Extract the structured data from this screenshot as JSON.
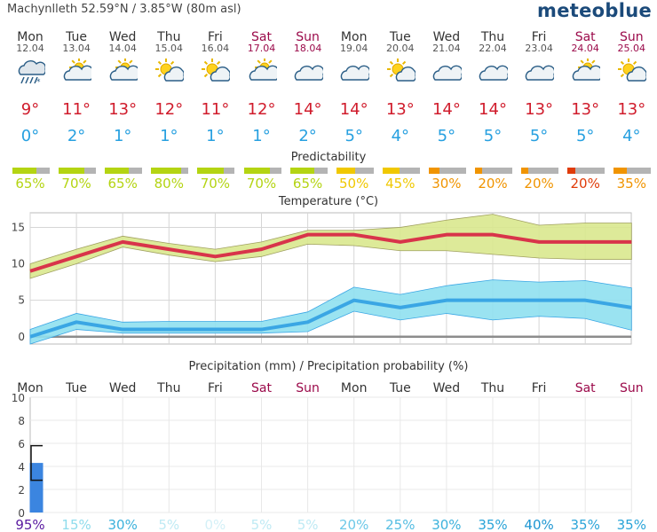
{
  "header": {
    "location": "Machynlleth  52.59°N / 3.85°W (80m asl)",
    "brand": "meteoblue"
  },
  "days": [
    {
      "name": "Mon",
      "date": "12.04",
      "weekend": false,
      "icon": "rain-cloud-icon",
      "tmax": "9°",
      "tmin": "0°",
      "predictability": 65,
      "pred_label": "65%",
      "pred_color": "#b4d412",
      "precip_mm": 4.3,
      "precip_prob": "95%",
      "prob_color": "#5a1aa0"
    },
    {
      "name": "Tue",
      "date": "13.04",
      "weekend": false,
      "icon": "sun-cloud-icon",
      "tmax": "11°",
      "tmin": "2°",
      "predictability": 70,
      "pred_label": "70%",
      "pred_color": "#b4d412",
      "precip_mm": 0,
      "precip_prob": "15%",
      "prob_color": "#8fdcec"
    },
    {
      "name": "Wed",
      "date": "14.04",
      "weekend": false,
      "icon": "sun-cloud-icon",
      "tmax": "13°",
      "tmin": "1°",
      "predictability": 65,
      "pred_label": "65%",
      "pred_color": "#b4d412",
      "precip_mm": 0,
      "precip_prob": "30%",
      "prob_color": "#3cb2dc"
    },
    {
      "name": "Thu",
      "date": "15.04",
      "weekend": false,
      "icon": "sun-small-cloud-icon",
      "tmax": "12°",
      "tmin": "1°",
      "predictability": 80,
      "pred_label": "80%",
      "pred_color": "#b4d412",
      "precip_mm": 0,
      "precip_prob": "5%",
      "prob_color": "#bfeaf4"
    },
    {
      "name": "Fri",
      "date": "16.04",
      "weekend": false,
      "icon": "sun-small-cloud-icon",
      "tmax": "11°",
      "tmin": "1°",
      "predictability": 70,
      "pred_label": "70%",
      "pred_color": "#b4d412",
      "precip_mm": 0,
      "precip_prob": "0%",
      "prob_color": "#d4f0f7"
    },
    {
      "name": "Sat",
      "date": "17.04",
      "weekend": true,
      "icon": "sun-cloud-icon",
      "tmax": "12°",
      "tmin": "1°",
      "predictability": 70,
      "pred_label": "70%",
      "pred_color": "#b4d412",
      "precip_mm": 0,
      "precip_prob": "5%",
      "prob_color": "#bfeaf4"
    },
    {
      "name": "Sun",
      "date": "18.04",
      "weekend": true,
      "icon": "cloud-icon",
      "tmax": "14°",
      "tmin": "2°",
      "predictability": 65,
      "pred_label": "65%",
      "pred_color": "#b4d412",
      "precip_mm": 0,
      "precip_prob": "5%",
      "prob_color": "#bfeaf4"
    },
    {
      "name": "Mon",
      "date": "19.04",
      "weekend": false,
      "icon": "cloud-icon",
      "tmax": "14°",
      "tmin": "5°",
      "predictability": 50,
      "pred_label": "50%",
      "pred_color": "#f0c800",
      "precip_mm": 0,
      "precip_prob": "20%",
      "prob_color": "#6cc8e8"
    },
    {
      "name": "Tue",
      "date": "20.04",
      "weekend": false,
      "icon": "sun-small-cloud-icon",
      "tmax": "13°",
      "tmin": "4°",
      "predictability": 45,
      "pred_label": "45%",
      "pred_color": "#f0c800",
      "precip_mm": 0,
      "precip_prob": "25%",
      "prob_color": "#55bde2"
    },
    {
      "name": "Wed",
      "date": "21.04",
      "weekend": false,
      "icon": "cloud-icon",
      "tmax": "14°",
      "tmin": "5°",
      "predictability": 30,
      "pred_label": "30%",
      "pred_color": "#f09400",
      "precip_mm": 0,
      "precip_prob": "30%",
      "prob_color": "#3cb2dc"
    },
    {
      "name": "Thu",
      "date": "22.04",
      "weekend": false,
      "icon": "cloud-icon",
      "tmax": "14°",
      "tmin": "5°",
      "predictability": 20,
      "pred_label": "20%",
      "pred_color": "#f09400",
      "precip_mm": 0,
      "precip_prob": "35%",
      "prob_color": "#2aa4d8"
    },
    {
      "name": "Fri",
      "date": "23.04",
      "weekend": false,
      "icon": "cloud-icon",
      "tmax": "13°",
      "tmin": "5°",
      "predictability": 20,
      "pred_label": "20%",
      "pred_color": "#f09400",
      "precip_mm": 0,
      "precip_prob": "40%",
      "prob_color": "#1e96d2"
    },
    {
      "name": "Sat",
      "date": "24.04",
      "weekend": true,
      "icon": "sun-cloud-icon",
      "tmax": "13°",
      "tmin": "5°",
      "predictability": 20,
      "pred_label": "20%",
      "pred_color": "#e03c0a",
      "precip_mm": 0,
      "precip_prob": "35%",
      "prob_color": "#2aa4d8"
    },
    {
      "name": "Sun",
      "date": "25.04",
      "weekend": true,
      "icon": "sun-small-cloud-icon",
      "tmax": "13°",
      "tmin": "4°",
      "predictability": 35,
      "pred_label": "35%",
      "pred_color": "#f09400",
      "precip_mm": 0,
      "precip_prob": "35%",
      "prob_color": "#2aa4d8"
    }
  ],
  "sections": {
    "predictability_title": "Predictability",
    "temperature_title": "Temperature (°C)",
    "precip_title": "Precipitation (mm) / Precipitation probability (%)"
  },
  "colors": {
    "max_line": "#d8344a",
    "max_band": "#d9e88e",
    "min_line": "#3aa6e4",
    "min_band": "#8fe0f0",
    "zero_line": "#8c8c8c",
    "precip_bar": "#3b85e0",
    "weekend_text": "#9b0a4a"
  },
  "chart_data": [
    {
      "type": "line",
      "title": "Temperature (°C)",
      "x": [
        "12.04",
        "13.04",
        "14.04",
        "15.04",
        "16.04",
        "17.04",
        "18.04",
        "19.04",
        "20.04",
        "21.04",
        "22.04",
        "23.04",
        "24.04",
        "25.04"
      ],
      "ylim": [
        -1,
        17
      ],
      "yticks": [
        0,
        5,
        10,
        15
      ],
      "grid": true,
      "series": [
        {
          "values": [
            9,
            11,
            13,
            12,
            11,
            12,
            14,
            14,
            13,
            14,
            14,
            13,
            13,
            13
          ],
          "band_low": [
            8,
            10,
            12.3,
            11.2,
            10.3,
            11,
            12.7,
            12.5,
            11.8,
            11.8,
            11.3,
            10.8,
            10.6,
            10.6
          ],
          "band_high": [
            10,
            12,
            13.8,
            12.8,
            12,
            13,
            14.6,
            14.6,
            15,
            16,
            16.8,
            15.3,
            15.6,
            15.6
          ]
        },
        {
          "values": [
            0,
            2,
            1,
            1,
            1,
            1,
            2,
            5,
            4,
            5,
            5,
            5,
            5,
            4
          ],
          "band_low": [
            -1,
            1,
            0.5,
            0.5,
            0.5,
            0.5,
            0.7,
            3.5,
            2.3,
            3.2,
            2.3,
            2.8,
            2.5,
            0.9
          ],
          "band_high": [
            1,
            3.2,
            2,
            2.1,
            2.1,
            2.1,
            3.4,
            6.8,
            5.8,
            7,
            7.8,
            7.5,
            7.7,
            6.7
          ]
        }
      ]
    },
    {
      "type": "bar",
      "title": "Precipitation (mm) / Precipitation probability (%)",
      "categories": [
        "Mon",
        "Tue",
        "Wed",
        "Thu",
        "Fri",
        "Sat",
        "Sun",
        "Mon",
        "Tue",
        "Wed",
        "Thu",
        "Fri",
        "Sat",
        "Sun"
      ],
      "values": [
        4.3,
        0,
        0,
        0,
        0,
        0,
        0,
        0,
        0,
        0,
        0,
        0,
        0,
        0
      ],
      "error_range": [
        2.8,
        5.8
      ],
      "probability": [
        95,
        15,
        30,
        5,
        0,
        5,
        5,
        20,
        25,
        30,
        35,
        40,
        35,
        35
      ],
      "ylim": [
        0,
        10
      ],
      "yticks": [
        0,
        2,
        4,
        6,
        8,
        10
      ]
    }
  ]
}
